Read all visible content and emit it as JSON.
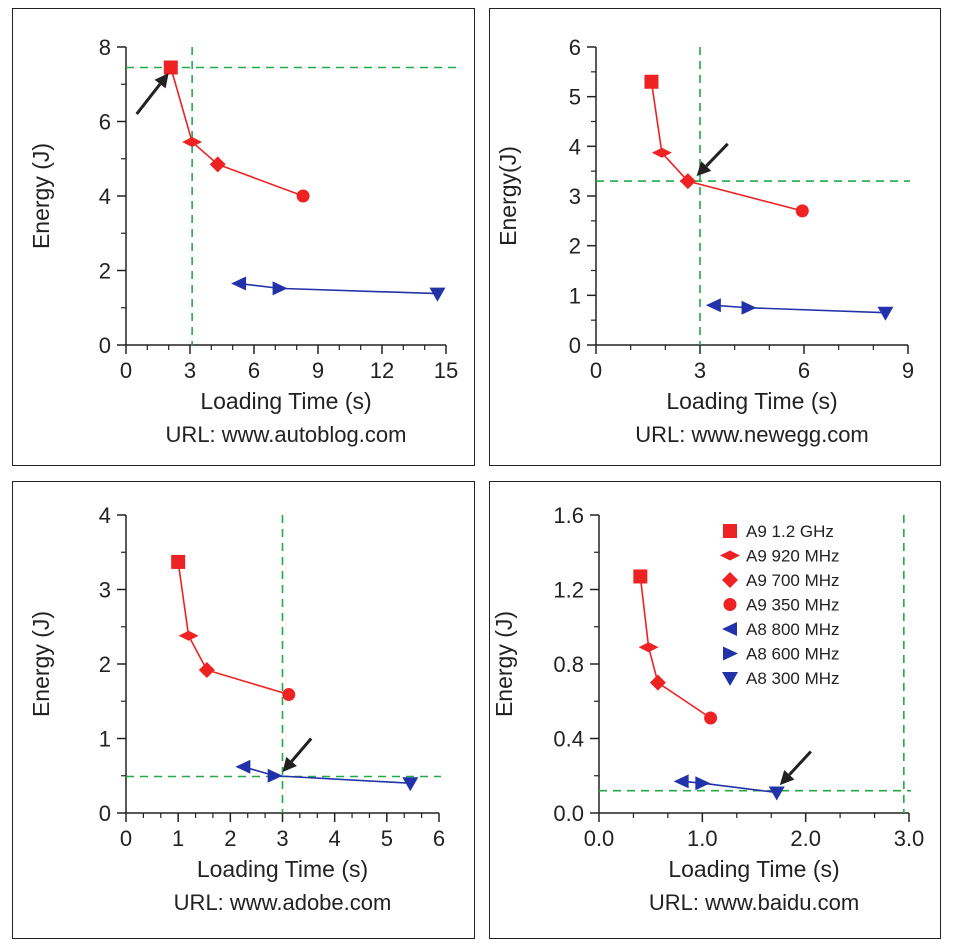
{
  "colors": {
    "a9_series": "#ee2222",
    "a8_series": "#2233aa",
    "guide": "#22aa44",
    "axis": "#222222",
    "arrow": "#222222"
  },
  "chart_data": [
    {
      "type": "line",
      "caption": "URL: www.autoblog.com",
      "xlabel": "Loading Time (s)",
      "ylabel": "Energy (J)",
      "xlim": [
        0,
        15
      ],
      "ylim": [
        0,
        8
      ],
      "xticks": [
        "0",
        "3",
        "6",
        "9",
        "12",
        "15"
      ],
      "yticks": [
        "0",
        "2",
        "4",
        "6",
        "8"
      ],
      "series": [
        {
          "marker": "square",
          "x": [
            2.1
          ],
          "y": [
            7.45
          ]
        },
        {
          "marker": "diamond-flat",
          "x": [
            3.1
          ],
          "y": [
            5.45
          ]
        },
        {
          "marker": "diamond",
          "x": [
            4.3
          ],
          "y": [
            4.85
          ]
        },
        {
          "marker": "circle",
          "x": [
            8.3
          ],
          "y": [
            4.0
          ]
        },
        {
          "marker": "triangle-left",
          "x": [
            5.3
          ],
          "y": [
            1.65
          ]
        },
        {
          "marker": "triangle-right",
          "x": [
            7.2
          ],
          "y": [
            1.52
          ]
        },
        {
          "marker": "triangle-down",
          "x": [
            14.6
          ],
          "y": [
            1.38
          ]
        }
      ],
      "guide_lines": {
        "x": 3.1,
        "y": 7.45
      },
      "arrow": {
        "from": [
          0.5,
          6.2
        ],
        "to": [
          2.0,
          7.3
        ]
      }
    },
    {
      "type": "line",
      "caption": "URL: www.newegg.com",
      "xlabel": "Loading Time (s)",
      "ylabel": "Energy(J)",
      "xlim": [
        0,
        9
      ],
      "ylim": [
        0,
        6
      ],
      "xticks": [
        "0",
        "3",
        "6",
        "9"
      ],
      "yticks": [
        "0",
        "1",
        "2",
        "3",
        "4",
        "5",
        "6"
      ],
      "series": [
        {
          "marker": "square",
          "x": [
            1.6
          ],
          "y": [
            5.3
          ]
        },
        {
          "marker": "diamond-flat",
          "x": [
            1.9
          ],
          "y": [
            3.87
          ]
        },
        {
          "marker": "diamond",
          "x": [
            2.65
          ],
          "y": [
            3.3
          ]
        },
        {
          "marker": "circle",
          "x": [
            5.95
          ],
          "y": [
            2.7
          ]
        },
        {
          "marker": "triangle-left",
          "x": [
            3.4
          ],
          "y": [
            0.8
          ]
        },
        {
          "marker": "triangle-right",
          "x": [
            4.4
          ],
          "y": [
            0.75
          ]
        },
        {
          "marker": "triangle-down",
          "x": [
            8.35
          ],
          "y": [
            0.65
          ]
        }
      ],
      "guide_lines": {
        "x": 3.0,
        "y": 3.3
      },
      "arrow": {
        "from": [
          3.8,
          4.05
        ],
        "to": [
          2.9,
          3.4
        ]
      }
    },
    {
      "type": "line",
      "caption": "URL: www.adobe.com",
      "xlabel": "Loading Time (s)",
      "ylabel": "Energy (J)",
      "xlim": [
        0,
        6
      ],
      "ylim": [
        0,
        4
      ],
      "xticks": [
        "0",
        "1",
        "2",
        "3",
        "4",
        "5",
        "6"
      ],
      "yticks": [
        "0",
        "1",
        "2",
        "3",
        "4"
      ],
      "series": [
        {
          "marker": "square",
          "x": [
            1.0
          ],
          "y": [
            3.37
          ]
        },
        {
          "marker": "diamond-flat",
          "x": [
            1.2
          ],
          "y": [
            2.38
          ]
        },
        {
          "marker": "diamond",
          "x": [
            1.55
          ],
          "y": [
            1.92
          ]
        },
        {
          "marker": "circle",
          "x": [
            3.12
          ],
          "y": [
            1.59
          ]
        },
        {
          "marker": "triangle-left",
          "x": [
            2.25
          ],
          "y": [
            0.62
          ]
        },
        {
          "marker": "triangle-right",
          "x": [
            2.85
          ],
          "y": [
            0.5
          ]
        },
        {
          "marker": "triangle-down",
          "x": [
            5.45
          ],
          "y": [
            0.4
          ]
        }
      ],
      "guide_lines": {
        "x": 3.0,
        "y": 0.49
      },
      "arrow": {
        "from": [
          3.55,
          1.0
        ],
        "to": [
          3.0,
          0.55
        ]
      }
    },
    {
      "type": "line",
      "caption": "URL: www.baidu.com",
      "xlabel": "Loading Time (s)",
      "ylabel": "Energy (J)",
      "xlim": [
        0.0,
        3.0
      ],
      "ylim": [
        0.0,
        1.6
      ],
      "xticks": [
        "0.0",
        "1.0",
        "2.0",
        "3.0"
      ],
      "yticks": [
        "0.0",
        "0.4",
        "0.8",
        "1.2",
        "1.6"
      ],
      "series": [
        {
          "marker": "square",
          "x": [
            0.4
          ],
          "y": [
            1.27
          ]
        },
        {
          "marker": "diamond-flat",
          "x": [
            0.48
          ],
          "y": [
            0.89
          ]
        },
        {
          "marker": "diamond",
          "x": [
            0.57
          ],
          "y": [
            0.7
          ]
        },
        {
          "marker": "circle",
          "x": [
            1.08
          ],
          "y": [
            0.51
          ]
        },
        {
          "marker": "triangle-left",
          "x": [
            0.8
          ],
          "y": [
            0.17
          ]
        },
        {
          "marker": "triangle-right",
          "x": [
            1.0
          ],
          "y": [
            0.16
          ]
        },
        {
          "marker": "triangle-down",
          "x": [
            1.72
          ],
          "y": [
            0.11
          ]
        }
      ],
      "guide_lines": {
        "x": 2.95,
        "y": 0.12
      },
      "arrow": {
        "from": [
          2.05,
          0.33
        ],
        "to": [
          1.75,
          0.15
        ]
      },
      "legend": {
        "placement": "top-right",
        "entries": [
          {
            "marker": "square",
            "label": "A9  1.2 GHz"
          },
          {
            "marker": "diamond-flat",
            "label": "A9 920 MHz"
          },
          {
            "marker": "diamond",
            "label": "A9 700 MHz"
          },
          {
            "marker": "circle",
            "label": "A9 350 MHz"
          },
          {
            "marker": "triangle-left",
            "label": "A8 800 MHz"
          },
          {
            "marker": "triangle-right",
            "label": "A8 600 MHz"
          },
          {
            "marker": "triangle-down",
            "label": "A8 300 MHz"
          }
        ]
      }
    }
  ]
}
